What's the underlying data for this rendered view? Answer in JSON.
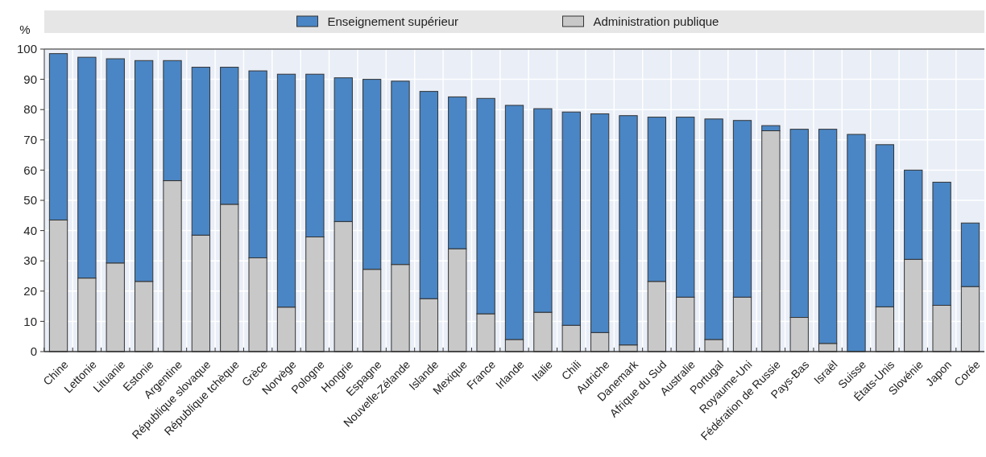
{
  "chart_data": {
    "type": "bar",
    "stacked": true,
    "ylabel": "%",
    "categories": [
      "Chine",
      "Lettonie",
      "Lituanie",
      "Estonie",
      "Argentine",
      "République slovaque",
      "République tchèque",
      "Grèce",
      "Norvège",
      "Pologne",
      "Hongrie",
      "Espagne",
      "Nouvelle-Zélande",
      "Islande",
      "Mexique",
      "France",
      "Irlande",
      "Italie",
      "Chili",
      "Autriche",
      "Danemark",
      "Afrique du Sud",
      "Australie",
      "Portugal",
      "Royaume-Uni",
      "Fédération de Russie",
      "Pays-Bas",
      "Israël",
      "Suisse",
      "États-Unis",
      "Slovénie",
      "Japon",
      "Corée"
    ],
    "series": [
      {
        "name": "Administration publique",
        "color": "#c8c8c8",
        "values": [
          43.5,
          24.3,
          29.3,
          23.2,
          56.5,
          38.5,
          48.7,
          31,
          14.7,
          37.9,
          43,
          27.2,
          28.8,
          17.5,
          34,
          12.5,
          4,
          13,
          8.7,
          6.3,
          2.2,
          23.2,
          18,
          4,
          18,
          73,
          11.3,
          2.7,
          0,
          14.8,
          30.5,
          15.3,
          21.5
        ]
      },
      {
        "name": "Enseignement supérieur",
        "color": "#4a86c5",
        "values": [
          55,
          73,
          67.5,
          73,
          39.7,
          55.5,
          45.3,
          61.8,
          77,
          53.8,
          47.5,
          62.8,
          60.6,
          68.5,
          50.2,
          71.2,
          77.4,
          67.3,
          70.5,
          72.3,
          75.8,
          54.3,
          59.5,
          72.9,
          58.4,
          1.7,
          62.2,
          70.8,
          71.8,
          53.6,
          29.5,
          40.7,
          21
        ]
      }
    ],
    "ylim": [
      0,
      100
    ],
    "yticks": [
      0,
      10,
      20,
      30,
      40,
      50,
      60,
      70,
      80,
      90,
      100
    ],
    "grid": true,
    "legend": "top"
  }
}
